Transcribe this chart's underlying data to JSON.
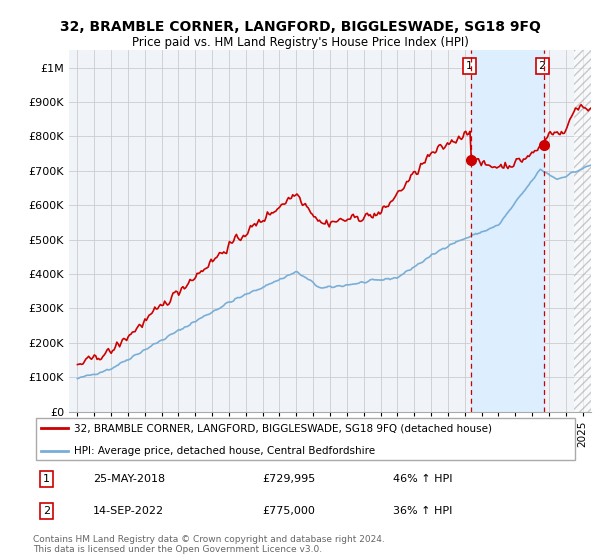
{
  "title": "32, BRAMBLE CORNER, LANGFORD, BIGGLESWADE, SG18 9FQ",
  "subtitle": "Price paid vs. HM Land Registry's House Price Index (HPI)",
  "ylim": [
    0,
    1050000
  ],
  "yticks": [
    0,
    100000,
    200000,
    300000,
    400000,
    500000,
    600000,
    700000,
    800000,
    900000,
    1000000
  ],
  "ytick_labels": [
    "£0",
    "£100K",
    "£200K",
    "£300K",
    "£400K",
    "£500K",
    "£600K",
    "£700K",
    "£800K",
    "£900K",
    "£1M"
  ],
  "xlim_start": 1995,
  "xlim_end": 2025,
  "red_line_color": "#cc0000",
  "blue_line_color": "#7aaed6",
  "marker1_x": 2018.38,
  "marker1_y": 729995,
  "marker2_x": 2022.7,
  "marker2_y": 775000,
  "highlight_color": "#ddeeff",
  "hatch_start": 2024.5,
  "annotation1": [
    "1",
    "25-MAY-2018",
    "£729,995",
    "46% ↑ HPI"
  ],
  "annotation2": [
    "2",
    "14-SEP-2022",
    "£775,000",
    "36% ↑ HPI"
  ],
  "legend_line1": "32, BRAMBLE CORNER, LANGFORD, BIGGLESWADE, SG18 9FQ (detached house)",
  "legend_line2": "HPI: Average price, detached house, Central Bedfordshire",
  "footer": "Contains HM Land Registry data © Crown copyright and database right 2024.\nThis data is licensed under the Open Government Licence v3.0.",
  "background_color": "#ffffff",
  "plot_bg_color": "#f0f4f8",
  "grid_color": "#cccccc"
}
